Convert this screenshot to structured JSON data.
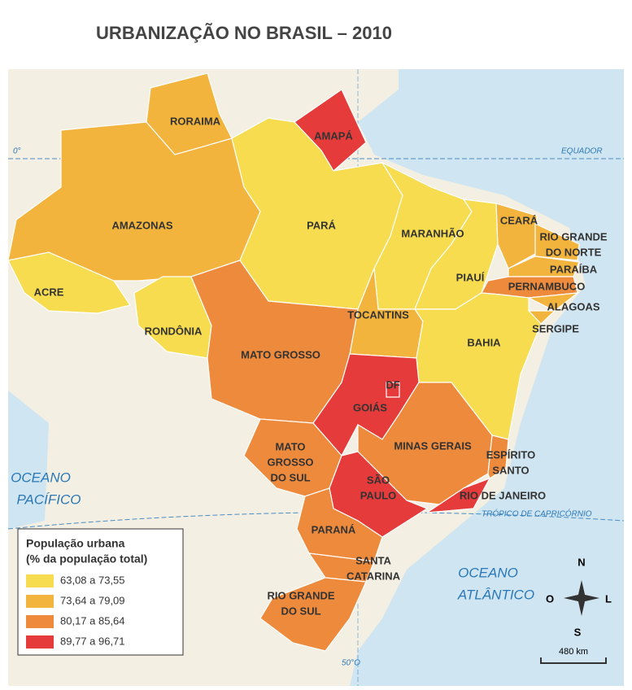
{
  "title": "URBANIZAÇÃO NO BRASIL – 2010",
  "map": {
    "states": [
      {
        "label": [
          "ACRE"
        ],
        "color": "#f6dc4e"
      },
      {
        "label": [
          "AMAZONAS"
        ],
        "color": "#f3b43e"
      },
      {
        "label": [
          "RORAIMA"
        ],
        "color": "#f3b43e"
      },
      {
        "label": [
          "AMAPÁ"
        ],
        "color": "#e53b3b"
      },
      {
        "label": [
          "PARÁ"
        ],
        "color": "#f6dc4e"
      },
      {
        "label": [
          "MARANHÃO"
        ],
        "color": "#f6dc4e"
      },
      {
        "label": [
          "PIAUÍ"
        ],
        "color": "#f6dc4e"
      },
      {
        "label": [
          "CEARÁ"
        ],
        "color": "#f3b43e"
      },
      {
        "label": [
          "RIO GRANDE",
          "DO NORTE"
        ],
        "color": "#f3b43e"
      },
      {
        "label": [
          "PARAÍBA"
        ],
        "color": "#f3b43e"
      },
      {
        "label": [
          "PERNAMBUCO"
        ],
        "color": "#ee8a3c"
      },
      {
        "label": [
          "ALAGOAS"
        ],
        "color": "#f3b43e"
      },
      {
        "label": [
          "SERGIPE"
        ],
        "color": "#f3b43e"
      },
      {
        "label": [
          "TOCANTINS"
        ],
        "color": "#f3b43e"
      },
      {
        "label": [
          "BAHIA"
        ],
        "color": "#f6dc4e"
      },
      {
        "label": [
          "RONDÔNIA"
        ],
        "color": "#f6dc4e"
      },
      {
        "label": [
          "MATO GROSSO"
        ],
        "color": "#ee8a3c"
      },
      {
        "label": [
          "GOIÁS"
        ],
        "color": "#e53b3b"
      },
      {
        "label": [
          "MATO",
          "GROSSO",
          "DO SUL"
        ],
        "color": "#ee8a3c"
      },
      {
        "label": [
          "MINAS GERAIS"
        ],
        "color": "#ee8a3c"
      },
      {
        "label": [
          "ESPÍRITO",
          "SANTO"
        ],
        "color": "#ee8a3c"
      },
      {
        "label": [
          "SÃO",
          "PAULO"
        ],
        "color": "#e53b3b"
      },
      {
        "label": [
          "RIO DE JANEIRO"
        ],
        "color": "#e53b3b"
      },
      {
        "label": [
          "PARANÁ"
        ],
        "color": "#ee8a3c"
      },
      {
        "label": [
          "SANTA",
          "CATARINA"
        ],
        "color": "#ee8a3c"
      },
      {
        "label": [
          "RIO GRANDE",
          "DO SUL"
        ],
        "color": "#ee8a3c"
      },
      {
        "label": [
          "DF"
        ],
        "color": "#e53b3b"
      }
    ],
    "oceans": [
      [
        "OCEANO",
        "ATLÂNTICO"
      ],
      [
        "OCEANO",
        "PACÍFICO"
      ]
    ],
    "equator": "EQUADOR",
    "equator_degree": "0°",
    "tropic": "TRÓPICO DE CAPRICÓRNIO",
    "meridian": "50°O",
    "compass": {
      "north": "N",
      "south": "S",
      "east": "L",
      "west": "O"
    },
    "scale": "480 km"
  },
  "legend": {
    "title": [
      "População urbana",
      "(% da população total)"
    ],
    "items": [
      {
        "label": "63,08 a 73,55",
        "color": "#f6dc4e"
      },
      {
        "label": "73,64 a 79,09",
        "color": "#f3b43e"
      },
      {
        "label": "80,17 a 85,64",
        "color": "#ee8a3c"
      },
      {
        "label": "89,77 a 96,71",
        "color": "#e53b3b"
      }
    ]
  }
}
